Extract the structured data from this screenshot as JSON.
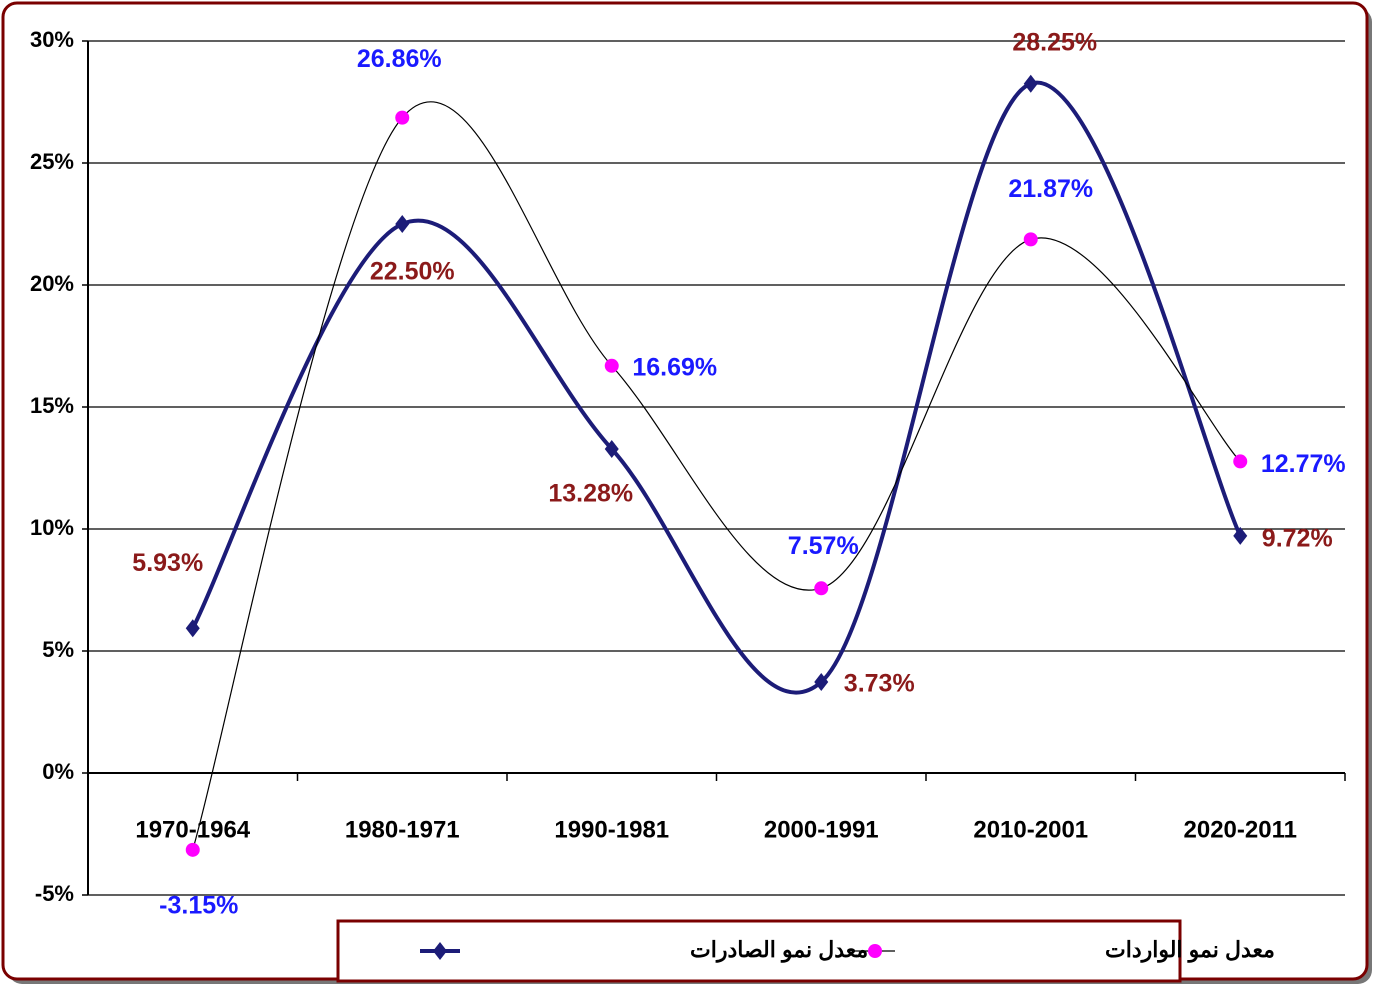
{
  "chart_data": {
    "type": "line",
    "categories": [
      "1970-1964",
      "1980-1971",
      "1990-1981",
      "2000-1991",
      "2010-2001",
      "2020-2011"
    ],
    "series": [
      {
        "name": "معدل نمو الصادرات",
        "color": "#1c1c78",
        "marker": "diamond",
        "label_color": "#8b1a1a",
        "values": [
          5.93,
          22.5,
          13.28,
          3.73,
          28.25,
          9.72
        ],
        "value_labels": [
          "5.93%",
          "22.50%",
          "13.28%",
          "3.73%",
          "28.25%",
          "9.72%"
        ]
      },
      {
        "name": "معدل نمو الواردات",
        "color": "#000000",
        "marker_color": "#ff00ff",
        "marker": "circle",
        "label_color": "#1a1aff",
        "values": [
          -3.15,
          26.86,
          16.69,
          7.57,
          21.87,
          12.77
        ],
        "value_labels": [
          "-3.15%",
          "26.86%",
          "16.69%",
          "7.57%",
          "21.87%",
          "12.77%"
        ]
      }
    ],
    "ylim": [
      -5,
      30
    ],
    "yticks": [
      {
        "value": -5,
        "label": "-5%"
      },
      {
        "value": 0,
        "label": "0%"
      },
      {
        "value": 5,
        "label": "5%"
      },
      {
        "value": 10,
        "label": "10%"
      },
      {
        "value": 15,
        "label": "15%"
      },
      {
        "value": 20,
        "label": "20%"
      },
      {
        "value": 25,
        "label": "25%"
      },
      {
        "value": 30,
        "label": "30%"
      }
    ],
    "grid": true
  }
}
